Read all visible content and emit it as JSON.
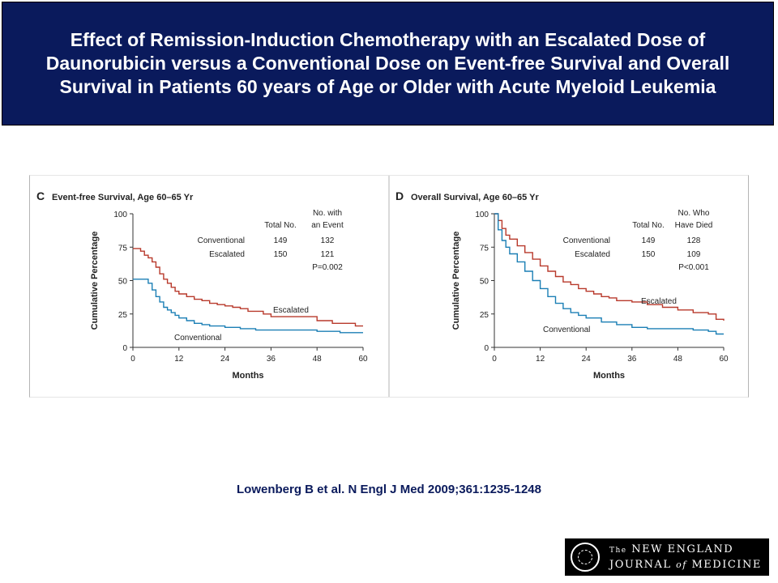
{
  "slide": {
    "title": "Effect of Remission-Induction Chemotherapy with an Escalated Dose of Daunorubicin versus a Conventional Dose on Event-free Survival and Overall Survival in Patients 60 years of Age or Older with Acute Myeloid Leukemia",
    "citation": "Lowenberg B et al. N Engl J Med 2009;361:1235-1248",
    "logo": {
      "line1_prefix": "The",
      "line1": "NEW ENGLAND",
      "line2_a": "JOURNAL",
      "line2_of": "of",
      "line2_b": "MEDICINE"
    }
  },
  "colors": {
    "title_bg": "#0a1a5c",
    "escalated": "#b8392b",
    "conventional": "#1b7fb5"
  },
  "chart_data": [
    {
      "type": "line",
      "step": true,
      "panel_letter": "C",
      "title": "Event-free Survival, Age 60–65 Yr",
      "xlabel": "Months",
      "ylabel": "Cumulative Percentage",
      "xlim": [
        0,
        60
      ],
      "ylim": [
        0,
        100
      ],
      "xticks": [
        0,
        12,
        24,
        36,
        48,
        60
      ],
      "yticks": [
        0,
        25,
        50,
        75,
        100
      ],
      "table": {
        "headers": [
          "Total No.",
          "No. with",
          "an Event"
        ],
        "rows": [
          {
            "label": "Conventional",
            "total": "149",
            "events": "132"
          },
          {
            "label": "Escalated",
            "total": "150",
            "events": "121"
          }
        ],
        "p_value": "P=0.002"
      },
      "series": [
        {
          "name": "Escalated",
          "x": [
            0,
            1,
            2,
            3,
            4,
            5,
            6,
            7,
            8,
            9,
            10,
            11,
            12,
            14,
            16,
            18,
            20,
            22,
            24,
            26,
            28,
            30,
            34,
            36,
            42,
            48,
            52,
            58,
            60
          ],
          "y": [
            74,
            74,
            72,
            69,
            67,
            64,
            60,
            55,
            51,
            48,
            45,
            42,
            40,
            38,
            36,
            35,
            33,
            32,
            31,
            30,
            29,
            27,
            25,
            23,
            23,
            20,
            18,
            16,
            16
          ]
        },
        {
          "name": "Conventional",
          "x": [
            0,
            2,
            4,
            5,
            6,
            7,
            8,
            9,
            10,
            11,
            12,
            14,
            16,
            18,
            20,
            24,
            28,
            32,
            36,
            42,
            48,
            54,
            60
          ],
          "y": [
            51,
            51,
            48,
            43,
            38,
            34,
            30,
            28,
            26,
            24,
            22,
            20,
            18,
            17,
            16,
            15,
            14,
            13,
            13,
            13,
            12,
            11,
            11
          ]
        }
      ],
      "labels": [
        {
          "text": "Escalated",
          "series": "Escalated"
        },
        {
          "text": "Conventional",
          "series": "Conventional"
        }
      ]
    },
    {
      "type": "line",
      "step": true,
      "panel_letter": "D",
      "title": "Overall Survival, Age 60–65 Yr",
      "xlabel": "Months",
      "ylabel": "Cumulative Percentage",
      "xlim": [
        0,
        60
      ],
      "ylim": [
        0,
        100
      ],
      "xticks": [
        0,
        12,
        24,
        36,
        48,
        60
      ],
      "yticks": [
        0,
        25,
        50,
        75,
        100
      ],
      "table": {
        "headers": [
          "Total No.",
          "No. Who",
          "Have Died"
        ],
        "rows": [
          {
            "label": "Conventional",
            "total": "149",
            "events": "128"
          },
          {
            "label": "Escalated",
            "total": "150",
            "events": "109"
          }
        ],
        "p_value": "P<0.001"
      },
      "series": [
        {
          "name": "Escalated",
          "x": [
            0,
            1,
            2,
            3,
            4,
            6,
            8,
            10,
            12,
            14,
            16,
            18,
            20,
            22,
            24,
            26,
            28,
            30,
            32,
            36,
            40,
            44,
            48,
            52,
            56,
            58,
            60
          ],
          "y": [
            100,
            95,
            89,
            84,
            81,
            76,
            71,
            66,
            61,
            57,
            53,
            49,
            47,
            44,
            42,
            40,
            38,
            37,
            35,
            34,
            32,
            30,
            28,
            26,
            25,
            21,
            20
          ]
        },
        {
          "name": "Conventional",
          "x": [
            0,
            1,
            2,
            3,
            4,
            6,
            8,
            10,
            12,
            14,
            16,
            18,
            20,
            22,
            24,
            28,
            32,
            36,
            40,
            44,
            48,
            52,
            56,
            58,
            60
          ],
          "y": [
            100,
            88,
            80,
            75,
            70,
            64,
            57,
            50,
            44,
            38,
            33,
            29,
            26,
            24,
            22,
            19,
            17,
            15,
            14,
            14,
            14,
            13,
            12,
            10,
            10
          ]
        }
      ],
      "labels": [
        {
          "text": "Escalated",
          "series": "Escalated"
        },
        {
          "text": "Conventional",
          "series": "Conventional"
        }
      ]
    }
  ]
}
